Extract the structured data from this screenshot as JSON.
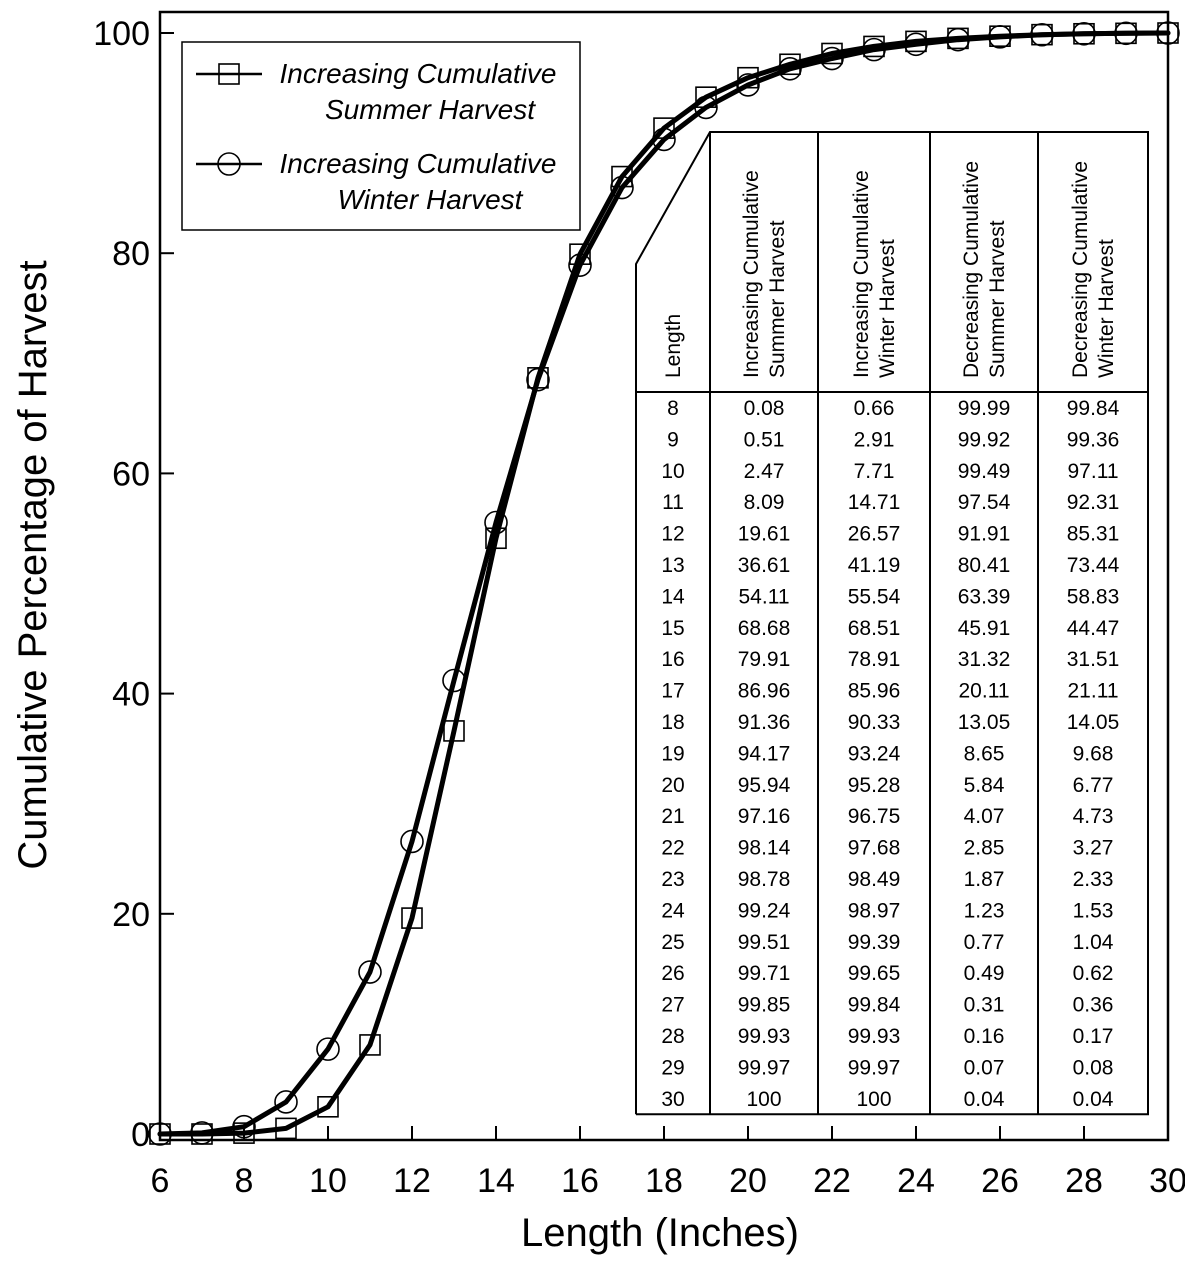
{
  "chart_data": {
    "type": "line",
    "xlabel": "Length (Inches)",
    "ylabel": "Cumulative Percentage of Harvest",
    "xlim": [
      6,
      30
    ],
    "ylim": [
      0,
      100
    ],
    "x_ticks": [
      "6",
      "8",
      "10",
      "12",
      "14",
      "16",
      "18",
      "20",
      "22",
      "24",
      "26",
      "28",
      "30"
    ],
    "y_ticks": [
      "0",
      "20",
      "40",
      "60",
      "80",
      "100"
    ],
    "grid": false,
    "legend_position": "top-left",
    "legend": [
      {
        "line1": "Increasing Cumulative",
        "line2": "Summer Harvest",
        "marker": "square"
      },
      {
        "line1": "Increasing Cumulative",
        "line2": "Winter Harvest",
        "marker": "circle"
      }
    ],
    "series": [
      {
        "marker": "square",
        "x": [
          6,
          7,
          8,
          9,
          10,
          11,
          12,
          13,
          14,
          15,
          16,
          17,
          18,
          19,
          20,
          21,
          22,
          23,
          24,
          25,
          26,
          27,
          28,
          29,
          30
        ],
        "values": [
          0,
          0,
          0.08,
          0.51,
          2.47,
          8.09,
          19.61,
          36.61,
          54.11,
          68.68,
          79.91,
          86.96,
          91.36,
          94.17,
          95.94,
          97.16,
          98.14,
          98.78,
          99.24,
          99.51,
          99.71,
          99.85,
          99.93,
          99.97,
          100
        ]
      },
      {
        "marker": "circle",
        "x": [
          6,
          7,
          8,
          9,
          10,
          11,
          12,
          13,
          14,
          15,
          16,
          17,
          18,
          19,
          20,
          21,
          22,
          23,
          24,
          25,
          26,
          27,
          28,
          29,
          30
        ],
        "values": [
          0,
          0.1,
          0.66,
          2.91,
          7.71,
          14.71,
          26.57,
          41.19,
          55.54,
          68.51,
          78.91,
          85.96,
          90.33,
          93.24,
          95.28,
          96.75,
          97.68,
          98.49,
          98.97,
          99.39,
          99.65,
          99.84,
          99.93,
          99.97,
          100
        ]
      }
    ],
    "table": {
      "headers": [
        [
          "Length"
        ],
        [
          "Increasing Cumulative",
          "Summer Harvest"
        ],
        [
          "Increasing Cumulative",
          "Winter Harvest"
        ],
        [
          "Decreasing Cumulative",
          "Summer Harvest"
        ],
        [
          "Decreasing Cumulative",
          "Winter Harvest"
        ]
      ],
      "rows": [
        [
          "8",
          "0.08",
          "0.66",
          "99.99",
          "99.84"
        ],
        [
          "9",
          "0.51",
          "2.91",
          "99.92",
          "99.36"
        ],
        [
          "10",
          "2.47",
          "7.71",
          "99.49",
          "97.11"
        ],
        [
          "11",
          "8.09",
          "14.71",
          "97.54",
          "92.31"
        ],
        [
          "12",
          "19.61",
          "26.57",
          "91.91",
          "85.31"
        ],
        [
          "13",
          "36.61",
          "41.19",
          "80.41",
          "73.44"
        ],
        [
          "14",
          "54.11",
          "55.54",
          "63.39",
          "58.83"
        ],
        [
          "15",
          "68.68",
          "68.51",
          "45.91",
          "44.47"
        ],
        [
          "16",
          "79.91",
          "78.91",
          "31.32",
          "31.51"
        ],
        [
          "17",
          "86.96",
          "85.96",
          "20.11",
          "21.11"
        ],
        [
          "18",
          "91.36",
          "90.33",
          "13.05",
          "14.05"
        ],
        [
          "19",
          "94.17",
          "93.24",
          "8.65",
          "9.68"
        ],
        [
          "20",
          "95.94",
          "95.28",
          "5.84",
          "6.77"
        ],
        [
          "21",
          "97.16",
          "96.75",
          "4.07",
          "4.73"
        ],
        [
          "22",
          "98.14",
          "97.68",
          "2.85",
          "3.27"
        ],
        [
          "23",
          "98.78",
          "98.49",
          "1.87",
          "2.33"
        ],
        [
          "24",
          "99.24",
          "98.97",
          "1.23",
          "1.53"
        ],
        [
          "25",
          "99.51",
          "99.39",
          "0.77",
          "1.04"
        ],
        [
          "26",
          "99.71",
          "99.65",
          "0.49",
          "0.62"
        ],
        [
          "27",
          "99.85",
          "99.84",
          "0.31",
          "0.36"
        ],
        [
          "28",
          "99.93",
          "99.93",
          "0.16",
          "0.17"
        ],
        [
          "29",
          "99.97",
          "99.97",
          "0.07",
          "0.08"
        ],
        [
          "30",
          "100",
          "100",
          "0.04",
          "0.04"
        ]
      ]
    }
  }
}
